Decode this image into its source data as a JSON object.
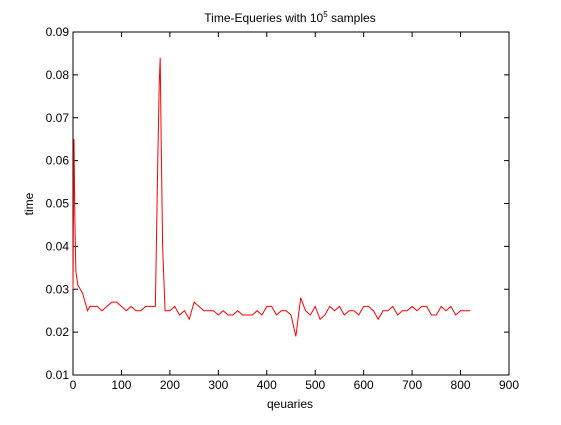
{
  "chart_data": {
    "type": "line",
    "title_main": "Time-Equeries with 10",
    "title_sup": "5",
    "title_tail": " samples",
    "xlabel": "qeuaries",
    "ylabel": "time",
    "xlim": [
      0,
      900
    ],
    "ylim": [
      0.01,
      0.09
    ],
    "xticks": [
      0,
      100,
      200,
      300,
      400,
      500,
      600,
      700,
      800,
      900
    ],
    "xtick_labels": [
      "0",
      "100",
      "200",
      "300",
      "400",
      "500",
      "600",
      "700",
      "800",
      "900"
    ],
    "yticks": [
      0.01,
      0.02,
      0.03,
      0.04,
      0.05,
      0.06,
      0.07,
      0.08,
      0.09
    ],
    "ytick_labels": [
      "0.01",
      "0.02",
      "0.03",
      "0.04",
      "0.05",
      "0.06",
      "0.07",
      "0.08",
      "0.09"
    ],
    "grid": false,
    "legend": "none",
    "series": [
      {
        "color": "#ff0000",
        "x": [
          0,
          2,
          4,
          6,
          10,
          15,
          20,
          25,
          30,
          35,
          40,
          50,
          60,
          70,
          80,
          90,
          100,
          110,
          120,
          130,
          140,
          150,
          160,
          170,
          175,
          178,
          180,
          182,
          185,
          190,
          200,
          210,
          220,
          230,
          240,
          250,
          260,
          270,
          280,
          290,
          300,
          310,
          320,
          330,
          340,
          350,
          360,
          370,
          380,
          390,
          400,
          410,
          420,
          430,
          440,
          450,
          460,
          470,
          480,
          490,
          500,
          510,
          520,
          530,
          540,
          550,
          560,
          570,
          580,
          590,
          600,
          610,
          620,
          630,
          640,
          650,
          660,
          670,
          680,
          690,
          700,
          710,
          720,
          730,
          740,
          750,
          760,
          770,
          780,
          790,
          800,
          810,
          820
        ],
        "y": [
          0.03,
          0.065,
          0.045,
          0.034,
          0.031,
          0.03,
          0.029,
          0.027,
          0.025,
          0.026,
          0.026,
          0.026,
          0.025,
          0.026,
          0.027,
          0.027,
          0.026,
          0.025,
          0.026,
          0.025,
          0.025,
          0.026,
          0.026,
          0.026,
          0.06,
          0.078,
          0.084,
          0.065,
          0.04,
          0.025,
          0.025,
          0.026,
          0.024,
          0.025,
          0.023,
          0.027,
          0.026,
          0.025,
          0.025,
          0.025,
          0.024,
          0.025,
          0.024,
          0.024,
          0.025,
          0.024,
          0.024,
          0.024,
          0.025,
          0.024,
          0.026,
          0.026,
          0.024,
          0.025,
          0.025,
          0.024,
          0.019,
          0.028,
          0.025,
          0.024,
          0.026,
          0.023,
          0.024,
          0.026,
          0.025,
          0.026,
          0.024,
          0.025,
          0.025,
          0.024,
          0.026,
          0.026,
          0.025,
          0.023,
          0.025,
          0.025,
          0.026,
          0.024,
          0.025,
          0.025,
          0.026,
          0.025,
          0.026,
          0.026,
          0.024,
          0.024,
          0.026,
          0.025,
          0.026,
          0.024,
          0.025,
          0.025,
          0.025
        ]
      }
    ]
  }
}
